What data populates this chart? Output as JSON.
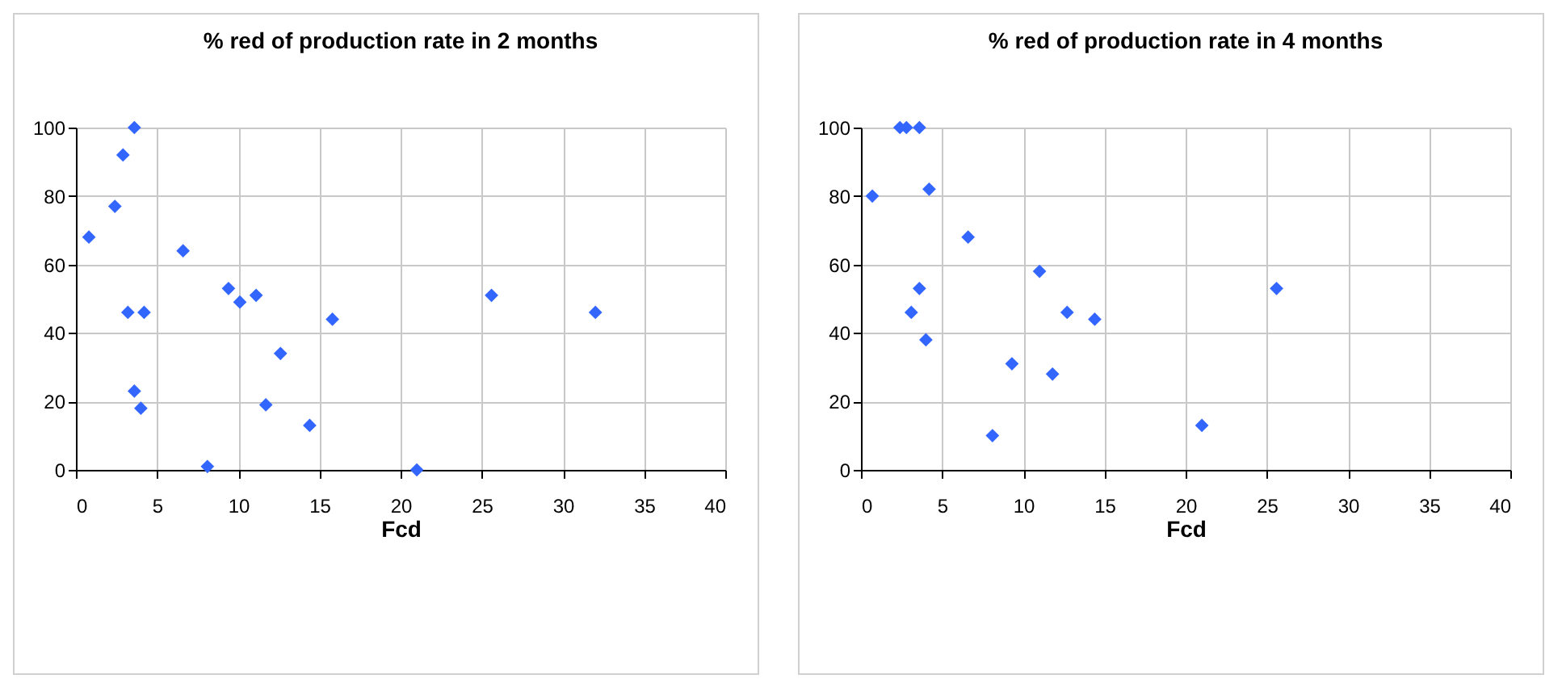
{
  "chart_data": [
    {
      "type": "scatter",
      "title": "% red of production rate in 2 months",
      "xlabel": "Fcd",
      "marker": "diamond",
      "grid": true,
      "x": [
        0.8,
        2.4,
        2.9,
        3.6,
        3.2,
        4.2,
        3.6,
        4.0,
        6.6,
        8.1,
        9.4,
        10.1,
        11.1,
        11.7,
        12.6,
        14.4,
        15.8,
        21.0,
        25.6,
        32.0
      ],
      "series": [
        {
          "color": "#3366ff",
          "values": [
            68,
            77,
            92,
            100,
            46,
            46,
            23,
            18,
            64,
            1,
            53,
            49,
            51,
            19,
            34,
            13,
            44,
            0,
            51,
            46
          ]
        }
      ],
      "xlim": [
        0,
        40
      ],
      "xticks": [
        0,
        5,
        10,
        15,
        20,
        25,
        30,
        35,
        40
      ],
      "ylim": [
        0,
        100
      ],
      "yticks": [
        0,
        20,
        40,
        60,
        80,
        100
      ]
    },
    {
      "type": "scatter",
      "title": "% red of production rate in 4 months",
      "xlabel": "Fcd",
      "marker": "diamond",
      "grid": true,
      "x": [
        0.7,
        2.4,
        2.8,
        3.6,
        4.2,
        6.6,
        3.6,
        3.1,
        4.0,
        8.1,
        9.3,
        11.0,
        11.8,
        12.7,
        14.4,
        21.0,
        25.6
      ],
      "series": [
        {
          "color": "#3366ff",
          "values": [
            80,
            100,
            100,
            100,
            82,
            68,
            53,
            46,
            38,
            10,
            31,
            58,
            28,
            46,
            44,
            13,
            53
          ]
        }
      ],
      "xlim": [
        0,
        40
      ],
      "xticks": [
        0,
        5,
        10,
        15,
        20,
        25,
        30,
        35,
        40
      ],
      "ylim": [
        0,
        100
      ],
      "yticks": [
        0,
        20,
        40,
        60,
        80,
        100
      ]
    }
  ]
}
